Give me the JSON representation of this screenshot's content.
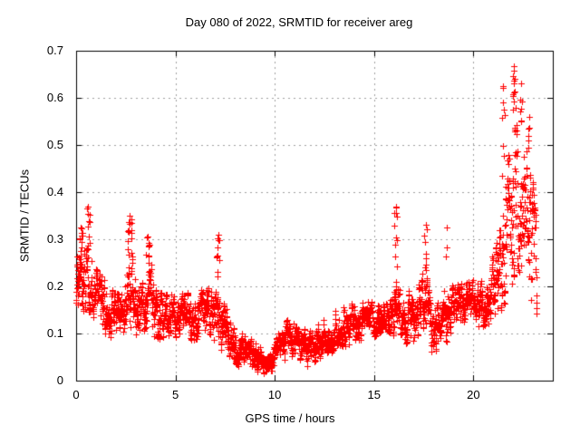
{
  "chart_data": {
    "type": "scatter",
    "title": "Day 080 of 2022, SRMTID for receiver areg",
    "xlabel": "GPS time / hours",
    "ylabel": "SRMTID / TECUs",
    "xlim": [
      0,
      24
    ],
    "ylim": [
      0,
      0.7
    ],
    "xticks": [
      0,
      5,
      10,
      15,
      20
    ],
    "xtick_labels": [
      "0",
      "5",
      "10",
      "15",
      "20"
    ],
    "yticks": [
      0,
      0.1,
      0.2,
      0.3,
      0.4,
      0.5,
      0.6,
      0.7
    ],
    "ytick_labels": [
      "0",
      "0.1",
      "0.2",
      "0.3",
      "0.4",
      "0.5",
      "0.6",
      "0.7"
    ],
    "grid": true,
    "legend": "none",
    "series_name": "SRMTID",
    "marker": {
      "shape": "plus",
      "size": 7
    },
    "colors": {
      "marker": "#ff0000",
      "grid": "#a0a0a0",
      "axis": "#000000",
      "background": "#ffffff"
    },
    "sampling_hours": 0.008,
    "t_start": 0,
    "t_end": 23.2,
    "envelope_description": "piecewise-linear band [hour, low, high] read from the plot; dense +-marker band oscillates inside it",
    "envelope": [
      [
        0.0,
        0.14,
        0.26
      ],
      [
        0.3,
        0.15,
        0.29
      ],
      [
        0.7,
        0.15,
        0.27
      ],
      [
        1.0,
        0.13,
        0.24
      ],
      [
        1.5,
        0.1,
        0.21
      ],
      [
        2.0,
        0.09,
        0.18
      ],
      [
        2.4,
        0.1,
        0.22
      ],
      [
        2.7,
        0.11,
        0.3
      ],
      [
        3.0,
        0.1,
        0.22
      ],
      [
        3.4,
        0.1,
        0.2
      ],
      [
        3.7,
        0.11,
        0.26
      ],
      [
        4.0,
        0.09,
        0.19
      ],
      [
        4.5,
        0.09,
        0.18
      ],
      [
        5.0,
        0.09,
        0.18
      ],
      [
        5.5,
        0.08,
        0.18
      ],
      [
        6.0,
        0.09,
        0.19
      ],
      [
        6.5,
        0.09,
        0.19
      ],
      [
        7.1,
        0.09,
        0.22
      ],
      [
        7.4,
        0.06,
        0.16
      ],
      [
        7.8,
        0.05,
        0.13
      ],
      [
        8.3,
        0.03,
        0.11
      ],
      [
        8.8,
        0.02,
        0.09
      ],
      [
        9.3,
        0.015,
        0.07
      ],
      [
        9.8,
        0.01,
        0.06
      ],
      [
        10.2,
        0.03,
        0.1
      ],
      [
        10.7,
        0.05,
        0.13
      ],
      [
        11.2,
        0.05,
        0.12
      ],
      [
        11.7,
        0.03,
        0.1
      ],
      [
        12.2,
        0.05,
        0.12
      ],
      [
        12.7,
        0.06,
        0.13
      ],
      [
        13.2,
        0.07,
        0.15
      ],
      [
        13.8,
        0.08,
        0.16
      ],
      [
        14.5,
        0.09,
        0.16
      ],
      [
        15.2,
        0.1,
        0.17
      ],
      [
        15.8,
        0.1,
        0.18
      ],
      [
        16.2,
        0.1,
        0.25
      ],
      [
        16.7,
        0.08,
        0.19
      ],
      [
        17.1,
        0.08,
        0.17
      ],
      [
        17.5,
        0.07,
        0.25
      ],
      [
        17.9,
        0.04,
        0.16
      ],
      [
        18.4,
        0.07,
        0.18
      ],
      [
        18.9,
        0.1,
        0.2
      ],
      [
        19.4,
        0.11,
        0.2
      ],
      [
        20.0,
        0.12,
        0.21
      ],
      [
        20.6,
        0.12,
        0.23
      ],
      [
        21.1,
        0.13,
        0.27
      ],
      [
        21.5,
        0.16,
        0.42
      ],
      [
        21.9,
        0.2,
        0.52
      ],
      [
        22.2,
        0.25,
        0.54
      ],
      [
        22.6,
        0.18,
        0.5
      ],
      [
        23.0,
        0.11,
        0.42
      ],
      [
        23.2,
        0.1,
        0.3
      ]
    ],
    "spikes_description": "vertical excursions above the band [hour, peak_value, half_width_hours, n_points]",
    "spikes": [
      [
        0.25,
        0.325,
        0.1,
        8
      ],
      [
        0.6,
        0.37,
        0.1,
        10
      ],
      [
        2.7,
        0.35,
        0.12,
        14
      ],
      [
        3.6,
        0.305,
        0.08,
        8
      ],
      [
        7.15,
        0.31,
        0.07,
        10
      ],
      [
        16.1,
        0.37,
        0.1,
        10
      ],
      [
        17.6,
        0.33,
        0.08,
        8
      ],
      [
        18.65,
        0.325,
        0.02,
        2
      ],
      [
        21.5,
        0.625,
        0.06,
        8
      ],
      [
        22.05,
        0.667,
        0.08,
        12
      ],
      [
        22.4,
        0.63,
        0.06,
        6
      ],
      [
        22.8,
        0.56,
        0.05,
        5
      ]
    ],
    "observed_extremes": {
      "max_value": 0.667,
      "max_value_hour": 22.1,
      "min_value": 0.01,
      "min_value_hour": 9.8
    }
  }
}
